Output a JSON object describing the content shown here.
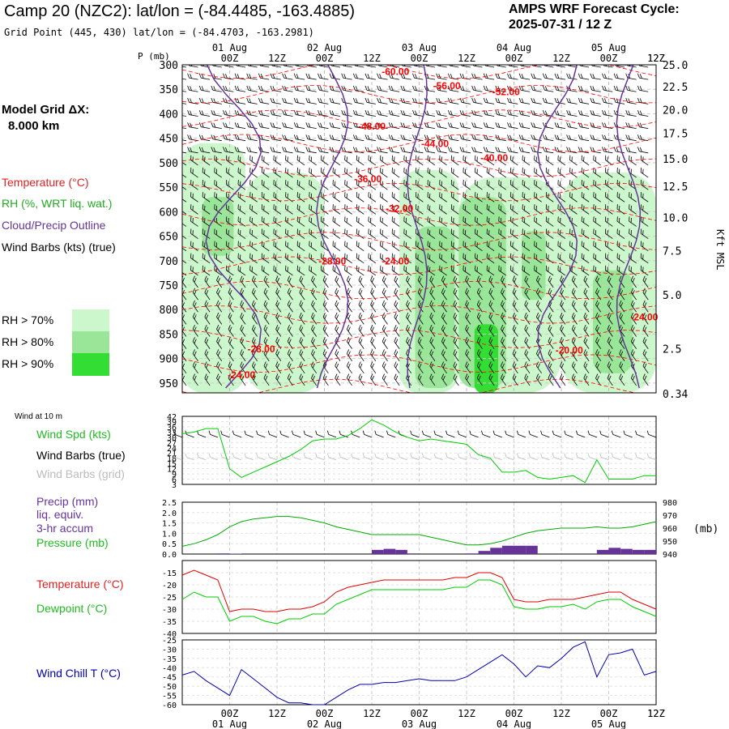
{
  "header": {
    "title": "Camp 20 (NZC2):  lat/lon = (-84.4485, -163.4885)",
    "subtitle": "Grid Point (445, 430) lat/lon = (-84.4703, -163.2981)",
    "cycle_label": "AMPS WRF Forecast Cycle:",
    "cycle_value": "2025-07-31 / 12  Z",
    "model_grid_label": "Model Grid ΔX:",
    "model_grid_value": "8.000 km"
  },
  "legend": {
    "temperature": "Temperature (°C)",
    "rh": "RH (%, WRT liq. wat.)",
    "cloud": "Cloud/Precip Outline",
    "wind": "Wind Barbs (kts) (true)",
    "rh70": "RH > 70%",
    "rh80": "RH > 80%",
    "rh90": "RH > 90%"
  },
  "colors": {
    "temperature": "#ff0000",
    "rh": "#22bb22",
    "cloud": "#663399",
    "rh70": "#ccf7cc",
    "rh80": "#99e699",
    "rh90": "#33dd33",
    "wind": "#000000",
    "wind_grid": "#bbbbbb",
    "precip": "#663399",
    "pressure": "#00aa00",
    "dewpoint": "#00cc00",
    "windchill": "#0000aa"
  },
  "time_axis": {
    "hours": [
      12,
      24,
      36,
      48,
      60,
      72,
      84,
      96,
      108,
      120,
      132
    ],
    "hour_labels": [
      "00Z",
      "12Z",
      "00Z",
      "12Z",
      "00Z",
      "12Z",
      "00Z",
      "12Z",
      "00Z",
      "12Z"
    ],
    "hour_label_positions": [
      12,
      24,
      36,
      48,
      60,
      72,
      84,
      96,
      108,
      120
    ],
    "days": [
      "01 Aug",
      "02 Aug",
      "03 Aug",
      "04 Aug",
      "05 Aug"
    ],
    "day_positions": [
      12,
      36,
      60,
      84,
      108
    ],
    "xlim": [
      0,
      120
    ]
  },
  "chart_data": [
    {
      "type": "heatmap",
      "ylabel": "P (mb)",
      "yticks": [
        300,
        350,
        400,
        450,
        500,
        550,
        600,
        650,
        700,
        750,
        800,
        850,
        900,
        950
      ],
      "ylim": [
        300,
        970
      ],
      "right_axis_label": "Kft MSL",
      "right_ticks": [
        "25.0",
        "22.5",
        "20.0",
        "17.5",
        "15.0",
        "12.5",
        "10.0",
        "7.5",
        "5.0",
        "2.5",
        "0.34"
      ],
      "right_tick_pressures": [
        300,
        345,
        392,
        440,
        492,
        548,
        612,
        680,
        770,
        880,
        972
      ],
      "temperature_labels": [
        {
          "text": "-60.00",
          "t": 54,
          "p": 321
        },
        {
          "text": "-56.00",
          "t": 67,
          "p": 350
        },
        {
          "text": "-52.00",
          "t": 82,
          "p": 362
        },
        {
          "text": "-48.00",
          "t": 48,
          "p": 432
        },
        {
          "text": "-44.00",
          "t": 64,
          "p": 468
        },
        {
          "text": "-40.00",
          "t": 79,
          "p": 497
        },
        {
          "text": "-36.00",
          "t": 47,
          "p": 540
        },
        {
          "text": "-32.00",
          "t": 55,
          "p": 600
        },
        {
          "text": "-28.00",
          "t": 38,
          "p": 708
        },
        {
          "text": "-24.00",
          "t": 54,
          "p": 708
        },
        {
          "text": "-24.00",
          "t": 125,
          "p": 822
        },
        {
          "text": "-20.00",
          "t": 98,
          "p": 890
        },
        {
          "text": "-28.00",
          "t": 20,
          "p": 887
        },
        {
          "text": "-24.00",
          "t": 15,
          "p": 940
        }
      ],
      "rh_regions": [
        {
          "level": 70,
          "t0": 0,
          "t1": 16,
          "p0": 460,
          "p1": 970
        },
        {
          "level": 70,
          "t0": 16,
          "t1": 36,
          "p0": 520,
          "p1": 970
        },
        {
          "level": 70,
          "t0": 55,
          "t1": 70,
          "p0": 515,
          "p1": 970
        },
        {
          "level": 70,
          "t0": 70,
          "t1": 96,
          "p0": 530,
          "p1": 970
        },
        {
          "level": 70,
          "t0": 96,
          "t1": 120,
          "p0": 520,
          "p1": 970
        },
        {
          "level": 80,
          "t0": 5,
          "t1": 13,
          "p0": 570,
          "p1": 690
        },
        {
          "level": 80,
          "t0": 59,
          "t1": 69,
          "p0": 630,
          "p1": 960
        },
        {
          "level": 80,
          "t0": 70,
          "t1": 82,
          "p0": 570,
          "p1": 960
        },
        {
          "level": 80,
          "t0": 86,
          "t1": 92,
          "p0": 640,
          "p1": 780
        },
        {
          "level": 80,
          "t0": 104,
          "t1": 114,
          "p0": 720,
          "p1": 930
        },
        {
          "level": 90,
          "t0": 74,
          "t1": 80,
          "p0": 830,
          "p1": 970
        }
      ]
    },
    {
      "type": "line",
      "title": "Wind at 10 m",
      "labels": [
        "Wind Spd (kts)",
        "Wind Barbs (true)",
        "Wind Barbs (grid)"
      ],
      "yticks": [
        3,
        6,
        9,
        12,
        15,
        18,
        21,
        24,
        27,
        30,
        33,
        36,
        39,
        42
      ],
      "ylim": [
        3,
        42
      ],
      "series": [
        {
          "name": "Wind Spd (kts)",
          "color": "#00cc00",
          "x": [
            0,
            3,
            6,
            9,
            12,
            15,
            18,
            21,
            24,
            27,
            30,
            33,
            36,
            39,
            42,
            45,
            48,
            51,
            54,
            57,
            60,
            63,
            66,
            69,
            72,
            75,
            78,
            81,
            84,
            87,
            90,
            93,
            96,
            99,
            102,
            105,
            108,
            111,
            114,
            117,
            120
          ],
          "values": [
            32,
            33,
            35,
            35,
            12,
            7,
            10,
            13,
            16,
            19,
            23,
            28,
            29,
            29,
            31,
            35,
            40,
            37,
            33,
            30,
            28,
            29,
            28,
            27,
            26,
            20,
            18,
            10,
            10,
            11,
            7,
            6,
            7,
            8,
            4,
            17,
            6,
            6,
            6,
            8,
            8
          ]
        }
      ]
    },
    {
      "type": "bar",
      "labels": [
        "Precip (mm)",
        "liq. equiv.",
        "3-hr accum",
        "Pressure (mb)"
      ],
      "yticks": [
        "0.0",
        "0.5",
        "1.0",
        "1.5",
        "2.0",
        "2.5"
      ],
      "right_axis_label": "(mb)",
      "right_ticks": [
        "940",
        "950",
        "960",
        "970",
        "980"
      ],
      "ylim": [
        0,
        2.5
      ],
      "right_ylim": [
        940,
        980
      ],
      "precip": {
        "x": [
          9,
          12,
          48,
          51,
          54,
          57,
          72,
          75,
          78,
          81,
          84,
          87,
          105,
          108,
          111,
          114,
          117
        ],
        "values": [
          0.03,
          0.02,
          0.2,
          0.25,
          0.2,
          0.03,
          0.03,
          0.15,
          0.3,
          0.4,
          0.4,
          0.4,
          0.2,
          0.3,
          0.25,
          0.2,
          0.2
        ]
      },
      "series": [
        {
          "name": "Pressure (mb)",
          "color": "#00aa00",
          "x": [
            0,
            3,
            6,
            9,
            12,
            15,
            18,
            21,
            24,
            27,
            30,
            33,
            36,
            39,
            42,
            45,
            48,
            51,
            54,
            57,
            60,
            63,
            66,
            69,
            72,
            75,
            78,
            81,
            84,
            87,
            90,
            93,
            96,
            99,
            102,
            105,
            108,
            111,
            114,
            117,
            120
          ],
          "values": [
            946,
            948,
            951,
            955,
            961,
            965,
            967,
            968,
            969,
            969,
            968,
            966,
            964,
            961,
            959,
            957,
            955,
            955,
            955,
            955,
            955,
            953,
            951,
            949,
            947,
            947,
            948,
            950,
            953,
            956,
            958,
            959,
            960,
            960,
            960,
            961,
            960,
            960,
            961,
            963,
            965
          ]
        }
      ]
    },
    {
      "type": "line",
      "labels": [
        "Temperature (°C)",
        "Dewpoint (°C)"
      ],
      "yticks": [
        -15,
        -20,
        -25,
        -30,
        -35,
        -40
      ],
      "ylim": [
        -40,
        -10
      ],
      "series": [
        {
          "name": "Temperature (°C)",
          "color": "#dd0000",
          "x": [
            0,
            3,
            6,
            9,
            12,
            15,
            18,
            21,
            24,
            27,
            30,
            33,
            36,
            39,
            42,
            45,
            48,
            51,
            54,
            57,
            60,
            63,
            66,
            69,
            72,
            75,
            78,
            81,
            84,
            87,
            90,
            93,
            96,
            99,
            102,
            105,
            108,
            111,
            114,
            117,
            120
          ],
          "values": [
            -16,
            -14,
            -16,
            -18,
            -31,
            -30,
            -30,
            -31,
            -31,
            -30,
            -30,
            -29,
            -27,
            -23,
            -21,
            -20,
            -19,
            -18,
            -18,
            -18,
            -18,
            -18,
            -18,
            -17,
            -17,
            -15,
            -15,
            -17,
            -26,
            -27,
            -27,
            -26,
            -26,
            -26,
            -25,
            -24,
            -23,
            -23,
            -26,
            -28,
            -30
          ]
        },
        {
          "name": "Dewpoint (°C)",
          "color": "#00cc00",
          "x": [
            0,
            3,
            6,
            9,
            12,
            15,
            18,
            21,
            24,
            27,
            30,
            33,
            36,
            39,
            42,
            45,
            48,
            51,
            54,
            57,
            60,
            63,
            66,
            69,
            72,
            75,
            78,
            81,
            84,
            87,
            90,
            93,
            96,
            99,
            102,
            105,
            108,
            111,
            114,
            117,
            120
          ],
          "values": [
            -26,
            -23,
            -25,
            -25,
            -35,
            -33,
            -33,
            -35,
            -36,
            -34,
            -34,
            -32,
            -32,
            -28,
            -26,
            -24,
            -22,
            -22,
            -22,
            -22,
            -22,
            -22,
            -22,
            -21,
            -21,
            -18,
            -18,
            -20,
            -29,
            -30,
            -30,
            -29,
            -29,
            -28,
            -30,
            -27,
            -26,
            -26,
            -29,
            -31,
            -33
          ]
        }
      ]
    },
    {
      "type": "line",
      "labels": [
        "Wind Chill T (°C)"
      ],
      "yticks": [
        -25,
        -30,
        -35,
        -40,
        -45,
        -50,
        -55,
        -60
      ],
      "ylim": [
        -60,
        -25
      ],
      "series": [
        {
          "name": "Wind Chill T (°C)",
          "color": "#0000aa",
          "x": [
            0,
            3,
            6,
            9,
            12,
            15,
            18,
            21,
            24,
            27,
            30,
            33,
            36,
            39,
            42,
            45,
            48,
            51,
            54,
            57,
            60,
            63,
            66,
            69,
            72,
            75,
            78,
            81,
            84,
            87,
            90,
            93,
            96,
            99,
            102,
            105,
            108,
            111,
            114,
            117,
            120
          ],
          "values": [
            -44,
            -42,
            -47,
            -51,
            -55,
            -41,
            -46,
            -51,
            -56,
            -59,
            -59,
            -60,
            -60,
            -56,
            -52,
            -49,
            -49,
            -48,
            -48,
            -47,
            -46,
            -47,
            -47,
            -47,
            -45,
            -41,
            -37,
            -33,
            -38,
            -45,
            -39,
            -40,
            -35,
            -29,
            -26,
            -45,
            -33,
            -32,
            -30,
            -44,
            -42
          ]
        }
      ]
    }
  ]
}
